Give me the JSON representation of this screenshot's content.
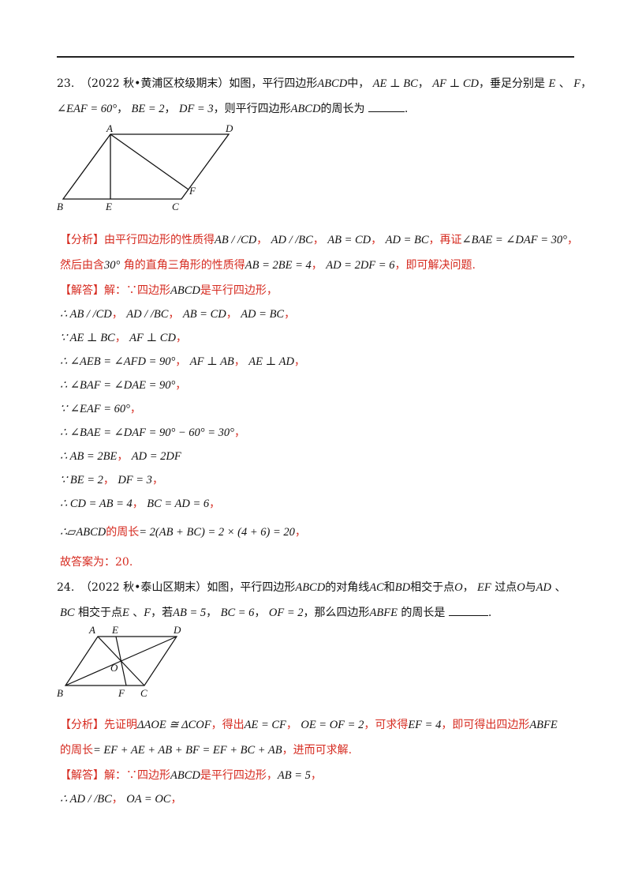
{
  "q23": {
    "number": "23.",
    "source": "（2022 秋•黄浦区校级期末）",
    "stem1": "如图，平行四边形",
    "ABCD": "ABCD",
    "zhong": "中，",
    "c1": "AE ⊥ BC",
    "c2": "AF ⊥ CD",
    "foot": "，垂足分别是",
    "E": "E",
    "dun": "、",
    "F": "F",
    "comma": "，",
    "c3": "∠EAF = 60°",
    "c4": "BE = 2",
    "c5": "DF = 3",
    "stem2": "，则平行四边形",
    "stem3": "的周长为",
    "analysis": {
      "tag": "【分析】",
      "t1": "由平行四边形的性质得",
      "m1": "AB / /CD",
      "m2": "AD / /BC",
      "m3": "AB = CD",
      "m4": "AD = BC",
      "t2": "，再证",
      "m5": "∠BAE = ∠DAF = 30°",
      "t3": "然后由含",
      "m6": "30°",
      "t4": "角的直角三角形的性质得",
      "m7": "AB = 2BE = 4",
      "m8": "AD = 2DF = 6",
      "t5": "，即可解决问题."
    },
    "solution": {
      "tag": "【解答】",
      "t0": "解：∵四边形",
      "m0": "ABCD",
      "t0b": "是平行四边形，",
      "l1a": "∴ AB / /CD",
      "l1b": "AD / /BC",
      "l1c": "AB = CD",
      "l1d": "AD = BC",
      "l2a": "∵ AE ⊥ BC",
      "l2b": "AF ⊥ CD",
      "l3a": "∴ ∠AEB = ∠AFD = 90°",
      "l3b": "AF ⊥ AB",
      "l3c": "AE ⊥ AD",
      "l4": "∴ ∠BAF = ∠DAE = 90°",
      "l5": "∵ ∠EAF = 60°",
      "l6": "∴ ∠BAE = ∠DAF = 90° − 60° = 30°",
      "l7a": "∴ AB = 2BE",
      "l7b": "AD = 2DF",
      "l8a": "∵ BE = 2",
      "l8b": "DF = 3",
      "l9a": "∴ CD = AB = 4",
      "l9b": "BC = AD = 6",
      "l10a": "∴▱ABCD",
      "l10t": "的周长",
      "l10b": "= 2(AB + BC) = 2 × (4 + 6) = 20",
      "answer": "故答案为：20."
    },
    "figure": {
      "A": "A",
      "B": "B",
      "C": "C",
      "D": "D",
      "E": "E",
      "F": "F"
    }
  },
  "q24": {
    "number": "24.",
    "source": "（2022 秋•泰山区期末）",
    "stem1": "如图，平行四边形",
    "ABCD": "ABCD",
    "stem2": "的对角线",
    "AC": "AC",
    "he": "和",
    "BD": "BD",
    "stem3": "相交于点",
    "O": "O",
    "EF": "EF",
    "stem4": "过点",
    "stem5": "与",
    "AD": "AD",
    "BC": "BC",
    "stem6": "相交于点",
    "E": "E",
    "F": "F",
    "ruo": "，若",
    "c1": "AB = 5",
    "c2": "BC = 6",
    "c3": "OF = 2",
    "stem7": "，那么四边形",
    "ABFE": "ABFE",
    "stem8": "的周长是",
    "analysis": {
      "tag": "【分析】",
      "t1": "先证明",
      "m1": "ΔAOE ≅ ΔCOF",
      "t2": "，得出",
      "m2": "AE = CF",
      "m3": "OE = OF = 2",
      "t3": "，可求得",
      "m4": "EF = 4",
      "t4": "，即可得出四边形",
      "m5": "ABFE",
      "t5": "的周长",
      "m6": "= EF + AE + AB + BF = EF + BC + AB",
      "t6": "，进而可求解."
    },
    "solution": {
      "tag": "【解答】",
      "t0": "解：∵四边形",
      "m0": "ABCD",
      "t0b": "是平行四边形，",
      "m0b": "AB = 5",
      "l1a": "∴ AD / /BC",
      "l1b": "OA = OC"
    },
    "figure": {
      "A": "A",
      "B": "B",
      "C": "C",
      "D": "D",
      "E": "E",
      "F": "F",
      "O": "O"
    }
  }
}
